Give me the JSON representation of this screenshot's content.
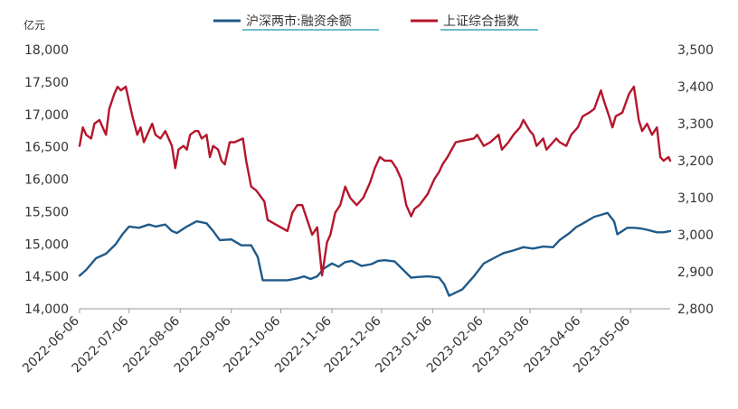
{
  "chart_data": {
    "type": "line",
    "title": "",
    "left_axis_unit": "亿元",
    "y_left": {
      "min": 14000,
      "max": 18000,
      "ticks": [
        "14,000",
        "14,500",
        "15,000",
        "15,500",
        "16,000",
        "16,500",
        "17,000",
        "17,500",
        "18,000"
      ]
    },
    "y_right": {
      "min": 2800,
      "max": 3500,
      "ticks": [
        "2,800",
        "2,900",
        "3,000",
        "3,100",
        "3,200",
        "3,300",
        "3,400",
        "3,500"
      ]
    },
    "x": {
      "start": "2022-06-06",
      "end": "2023-05-30",
      "ticks": [
        "2022-06-06",
        "2022-07-06",
        "2022-08-06",
        "2022-09-06",
        "2022-10-06",
        "2022-11-06",
        "2022-12-06",
        "2023-01-06",
        "2023-02-06",
        "2023-03-06",
        "2023-04-06",
        "2023-05-06"
      ]
    },
    "grid": false,
    "legend_position": "top",
    "series": [
      {
        "name": "沪深两市:融资余额",
        "axis": "left",
        "color": "#1F5A8A",
        "points": [
          [
            "2022-06-06",
            14510
          ],
          [
            "2022-06-10",
            14600
          ],
          [
            "2022-06-16",
            14780
          ],
          [
            "2022-06-22",
            14850
          ],
          [
            "2022-06-28",
            15000
          ],
          [
            "2022-07-02",
            15150
          ],
          [
            "2022-07-06",
            15270
          ],
          [
            "2022-07-12",
            15250
          ],
          [
            "2022-07-18",
            15300
          ],
          [
            "2022-07-22",
            15270
          ],
          [
            "2022-07-28",
            15300
          ],
          [
            "2022-08-01",
            15200
          ],
          [
            "2022-08-04",
            15170
          ],
          [
            "2022-08-10",
            15270
          ],
          [
            "2022-08-16",
            15350
          ],
          [
            "2022-08-22",
            15320
          ],
          [
            "2022-08-26",
            15200
          ],
          [
            "2022-08-30",
            15060
          ],
          [
            "2022-09-06",
            15070
          ],
          [
            "2022-09-12",
            14980
          ],
          [
            "2022-09-18",
            14980
          ],
          [
            "2022-09-22",
            14800
          ],
          [
            "2022-09-25",
            14440
          ],
          [
            "2022-10-01",
            14440
          ],
          [
            "2022-10-10",
            14440
          ],
          [
            "2022-10-16",
            14470
          ],
          [
            "2022-10-20",
            14500
          ],
          [
            "2022-10-24",
            14460
          ],
          [
            "2022-10-28",
            14500
          ],
          [
            "2022-11-01",
            14620
          ],
          [
            "2022-11-06",
            14700
          ],
          [
            "2022-11-10",
            14650
          ],
          [
            "2022-11-14",
            14720
          ],
          [
            "2022-11-18",
            14740
          ],
          [
            "2022-11-24",
            14660
          ],
          [
            "2022-11-30",
            14690
          ],
          [
            "2022-12-04",
            14740
          ],
          [
            "2022-12-08",
            14750
          ],
          [
            "2022-12-14",
            14730
          ],
          [
            "2022-12-20",
            14580
          ],
          [
            "2022-12-24",
            14480
          ],
          [
            "2022-12-28",
            14490
          ],
          [
            "2023-01-03",
            14500
          ],
          [
            "2023-01-07",
            14490
          ],
          [
            "2023-01-10",
            14480
          ],
          [
            "2023-01-13",
            14380
          ],
          [
            "2023-01-16",
            14200
          ],
          [
            "2023-01-24",
            14300
          ],
          [
            "2023-01-31",
            14500
          ],
          [
            "2023-02-06",
            14700
          ],
          [
            "2023-02-12",
            14780
          ],
          [
            "2023-02-18",
            14860
          ],
          [
            "2023-02-24",
            14900
          ],
          [
            "2023-03-02",
            14950
          ],
          [
            "2023-03-08",
            14930
          ],
          [
            "2023-03-14",
            14960
          ],
          [
            "2023-03-20",
            14950
          ],
          [
            "2023-03-24",
            15060
          ],
          [
            "2023-03-30",
            15170
          ],
          [
            "2023-04-03",
            15260
          ],
          [
            "2023-04-06",
            15300
          ],
          [
            "2023-04-10",
            15360
          ],
          [
            "2023-04-14",
            15420
          ],
          [
            "2023-04-18",
            15450
          ],
          [
            "2023-04-22",
            15480
          ],
          [
            "2023-04-26",
            15350
          ],
          [
            "2023-04-28",
            15150
          ],
          [
            "2023-05-04",
            15250
          ],
          [
            "2023-05-08",
            15250
          ],
          [
            "2023-05-12",
            15240
          ],
          [
            "2023-05-16",
            15220
          ],
          [
            "2023-05-22",
            15180
          ],
          [
            "2023-05-26",
            15180
          ],
          [
            "2023-05-30",
            15200
          ]
        ]
      },
      {
        "name": "上证综合指数",
        "axis": "right",
        "color": "#B5162B",
        "points": [
          [
            "2022-06-06",
            3240
          ],
          [
            "2022-06-08",
            3290
          ],
          [
            "2022-06-10",
            3270
          ],
          [
            "2022-06-13",
            3260
          ],
          [
            "2022-06-15",
            3300
          ],
          [
            "2022-06-18",
            3310
          ],
          [
            "2022-06-22",
            3270
          ],
          [
            "2022-06-24",
            3340
          ],
          [
            "2022-06-27",
            3380
          ],
          [
            "2022-06-29",
            3400
          ],
          [
            "2022-07-01",
            3390
          ],
          [
            "2022-07-04",
            3400
          ],
          [
            "2022-07-06",
            3360
          ],
          [
            "2022-07-08",
            3320
          ],
          [
            "2022-07-11",
            3270
          ],
          [
            "2022-07-13",
            3290
          ],
          [
            "2022-07-15",
            3250
          ],
          [
            "2022-07-18",
            3280
          ],
          [
            "2022-07-20",
            3300
          ],
          [
            "2022-07-22",
            3270
          ],
          [
            "2022-07-25",
            3260
          ],
          [
            "2022-07-28",
            3280
          ],
          [
            "2022-08-01",
            3240
          ],
          [
            "2022-08-03",
            3180
          ],
          [
            "2022-08-05",
            3230
          ],
          [
            "2022-08-08",
            3240
          ],
          [
            "2022-08-10",
            3230
          ],
          [
            "2022-08-12",
            3270
          ],
          [
            "2022-08-15",
            3280
          ],
          [
            "2022-08-17",
            3280
          ],
          [
            "2022-08-19",
            3260
          ],
          [
            "2022-08-22",
            3270
          ],
          [
            "2022-08-24",
            3210
          ],
          [
            "2022-08-26",
            3240
          ],
          [
            "2022-08-29",
            3230
          ],
          [
            "2022-08-31",
            3200
          ],
          [
            "2022-09-02",
            3190
          ],
          [
            "2022-09-05",
            3250
          ],
          [
            "2022-09-08",
            3250
          ],
          [
            "2022-09-13",
            3260
          ],
          [
            "2022-09-15",
            3200
          ],
          [
            "2022-09-18",
            3130
          ],
          [
            "2022-09-21",
            3120
          ],
          [
            "2022-09-26",
            3090
          ],
          [
            "2022-09-28",
            3040
          ],
          [
            "2022-10-10",
            3010
          ],
          [
            "2022-10-13",
            3060
          ],
          [
            "2022-10-16",
            3080
          ],
          [
            "2022-10-19",
            3080
          ],
          [
            "2022-10-22",
            3040
          ],
          [
            "2022-10-25",
            3000
          ],
          [
            "2022-10-28",
            3020
          ],
          [
            "2022-10-31",
            2890
          ],
          [
            "2022-11-03",
            2980
          ],
          [
            "2022-11-05",
            3000
          ],
          [
            "2022-11-08",
            3060
          ],
          [
            "2022-11-11",
            3080
          ],
          [
            "2022-11-14",
            3130
          ],
          [
            "2022-11-17",
            3100
          ],
          [
            "2022-11-21",
            3080
          ],
          [
            "2022-11-25",
            3100
          ],
          [
            "2022-11-29",
            3140
          ],
          [
            "2022-12-02",
            3180
          ],
          [
            "2022-12-05",
            3210
          ],
          [
            "2022-12-08",
            3200
          ],
          [
            "2022-12-12",
            3200
          ],
          [
            "2022-12-15",
            3180
          ],
          [
            "2022-12-18",
            3150
          ],
          [
            "2022-12-21",
            3080
          ],
          [
            "2022-12-24",
            3050
          ],
          [
            "2022-12-26",
            3070
          ],
          [
            "2022-12-29",
            3080
          ],
          [
            "2023-01-03",
            3110
          ],
          [
            "2023-01-07",
            3150
          ],
          [
            "2023-01-10",
            3170
          ],
          [
            "2023-01-12",
            3190
          ],
          [
            "2023-01-15",
            3210
          ],
          [
            "2023-01-20",
            3250
          ],
          [
            "2023-01-31",
            3260
          ],
          [
            "2023-02-02",
            3270
          ],
          [
            "2023-02-06",
            3240
          ],
          [
            "2023-02-10",
            3250
          ],
          [
            "2023-02-15",
            3270
          ],
          [
            "2023-02-17",
            3230
          ],
          [
            "2023-02-21",
            3250
          ],
          [
            "2023-02-24",
            3270
          ],
          [
            "2023-02-28",
            3290
          ],
          [
            "2023-03-02",
            3310
          ],
          [
            "2023-03-06",
            3280
          ],
          [
            "2023-03-08",
            3270
          ],
          [
            "2023-03-10",
            3240
          ],
          [
            "2023-03-14",
            3260
          ],
          [
            "2023-03-16",
            3230
          ],
          [
            "2023-03-20",
            3250
          ],
          [
            "2023-03-22",
            3260
          ],
          [
            "2023-03-24",
            3250
          ],
          [
            "2023-03-28",
            3240
          ],
          [
            "2023-03-31",
            3270
          ],
          [
            "2023-04-04",
            3290
          ],
          [
            "2023-04-07",
            3320
          ],
          [
            "2023-04-11",
            3330
          ],
          [
            "2023-04-14",
            3340
          ],
          [
            "2023-04-18",
            3390
          ],
          [
            "2023-04-20",
            3360
          ],
          [
            "2023-04-23",
            3320
          ],
          [
            "2023-04-25",
            3290
          ],
          [
            "2023-04-27",
            3320
          ],
          [
            "2023-05-01",
            3330
          ],
          [
            "2023-05-05",
            3380
          ],
          [
            "2023-05-08",
            3400
          ],
          [
            "2023-05-11",
            3310
          ],
          [
            "2023-05-13",
            3280
          ],
          [
            "2023-05-16",
            3300
          ],
          [
            "2023-05-19",
            3270
          ],
          [
            "2023-05-22",
            3290
          ],
          [
            "2023-05-24",
            3210
          ],
          [
            "2023-05-26",
            3200
          ],
          [
            "2023-05-29",
            3210
          ],
          [
            "2023-05-30",
            3200
          ]
        ]
      }
    ]
  }
}
